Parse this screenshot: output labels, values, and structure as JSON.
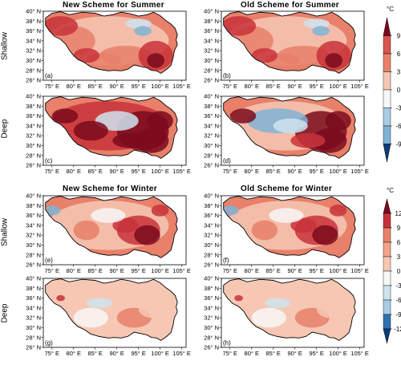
{
  "groups": [
    {
      "season": "summer",
      "titles": {
        "new": "New Scheme for Summer",
        "old": "Old Scheme for Summer"
      },
      "row_labels": {
        "shallow": "Shallow",
        "deep": "Deep"
      },
      "panels": [
        {
          "label": "(a)",
          "scheme": "new",
          "layer": "shallow",
          "intensity": 0.55,
          "pattern": "summer-shallow"
        },
        {
          "label": "(b)",
          "scheme": "old",
          "layer": "shallow",
          "intensity": 0.6,
          "pattern": "summer-shallow"
        },
        {
          "label": "(c)",
          "scheme": "new",
          "layer": "deep",
          "intensity": 0.8,
          "pattern": "summer-deep-new"
        },
        {
          "label": "(d)",
          "scheme": "old",
          "layer": "deep",
          "intensity": 0.75,
          "pattern": "summer-deep-old"
        }
      ],
      "colorbar": {
        "unit": "°C",
        "ticks": [
          "9",
          "6",
          "3",
          "0",
          "-3",
          "-6",
          "-9"
        ],
        "max": 9,
        "min": -9
      }
    },
    {
      "season": "winter",
      "titles": {
        "new": "New Scheme for Winter",
        "old": "Old Scheme for Winter"
      },
      "row_labels": {
        "shallow": "Shallow",
        "deep": "Deep"
      },
      "panels": [
        {
          "label": "(e)",
          "scheme": "new",
          "layer": "shallow",
          "intensity": 0.55,
          "pattern": "winter-shallow"
        },
        {
          "label": "(f)",
          "scheme": "old",
          "layer": "shallow",
          "intensity": 0.5,
          "pattern": "winter-shallow"
        },
        {
          "label": "(g)",
          "scheme": "new",
          "layer": "deep",
          "intensity": 0.25,
          "pattern": "winter-deep"
        },
        {
          "label": "(h)",
          "scheme": "old",
          "layer": "deep",
          "intensity": 0.25,
          "pattern": "winter-deep"
        }
      ],
      "colorbar": {
        "unit": "°C",
        "ticks": [
          "12",
          "9",
          "6",
          "3",
          "0",
          "-3",
          "-6",
          "-9",
          "-12"
        ],
        "max": 12,
        "min": -12
      }
    }
  ],
  "axes": {
    "lat_ticks": [
      "40° N",
      "38° N",
      "36° N",
      "34° N",
      "32° N",
      "30° N",
      "28° N",
      "26° N"
    ],
    "lon_ticks": [
      "75° E",
      "80° E",
      "85° E",
      "90° E",
      "95° E",
      "100° E",
      "105° E"
    ]
  },
  "colors": {
    "deep_red": "#7a0a1c",
    "red": "#c8323a",
    "mid_red": "#e8806a",
    "light_red": "#f6c8b4",
    "white": "#f7f7f7",
    "light_blue": "#cfe3ef",
    "mid_blue": "#7fb4d6",
    "blue": "#2f72b1",
    "deep_blue": "#0b3c78"
  }
}
